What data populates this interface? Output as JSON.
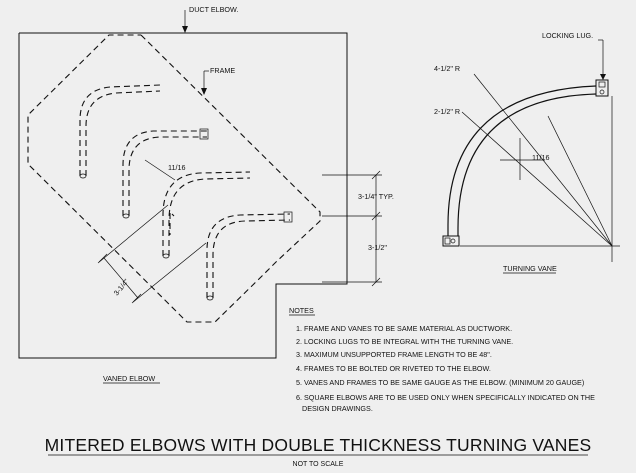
{
  "labels": {
    "duct_elbow": "DUCT ELBOW.",
    "frame": "FRAME",
    "typ_thickness": "11/16",
    "spacing_typ": "3-1/4\" TYP.",
    "spacing": "3-1/2\"",
    "diag_spacing": "3-1/4\"",
    "vaned_elbow": "VANED ELBOW",
    "locking_lug": "LOCKING LUG.",
    "outer_radius": "4-1/2\" R",
    "inner_radius": "2-1/2\" R",
    "vane_thickness": "11/16",
    "turning_vane": "TURNING VANE"
  },
  "notes": {
    "heading": "NOTES",
    "items": [
      "1. FRAME AND VANES TO BE SAME MATERIAL AS DUCTWORK.",
      "2. LOCKING LUGS TO BE INTEGRAL WITH THE TURNING VANE.",
      "3. MAXIMUM UNSUPPORTED FRAME LENGTH TO BE 48\".",
      "4. FRAMES TO BE BOLTED OR RIVETED TO THE ELBOW.",
      "5. VANES AND FRAMES TO BE SAME GAUGE AS THE ELBOW. (MINIMUM 20 GAUGE)",
      "6. SQUARE ELBOWS ARE TO BE USED ONLY WHEN SPECIFICALLY INDICATED ON THE",
      "DESIGN DRAWINGS."
    ]
  },
  "title": "MITERED ELBOWS WITH DOUBLE THICKNESS TURNING VANES",
  "subtitle": "NOT TO SCALE"
}
